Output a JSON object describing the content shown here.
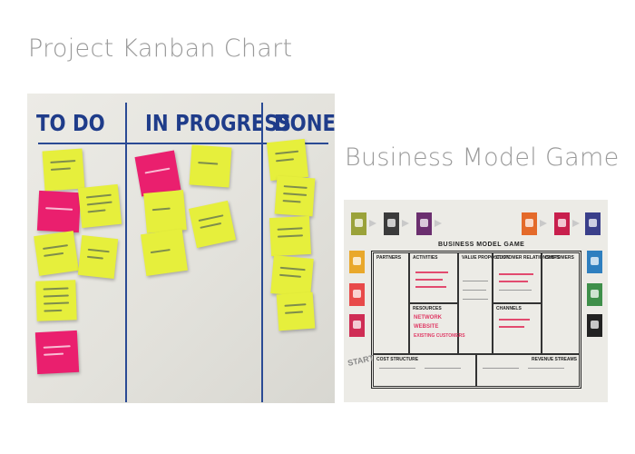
{
  "captions": {
    "kanban": "Project Kanban Chart",
    "business": "Business Model Game"
  },
  "kanban_board": {
    "columns": [
      "TO DO",
      "IN PROGRESS",
      "DONE!"
    ],
    "colors": {
      "yellow_note": "#e6ef3c",
      "pink_note": "#ea1f6e",
      "ink": "#1f3c8a"
    }
  },
  "business_model_board": {
    "title": "BUSINESS MODEL GAME",
    "sections": {
      "partners": "PARTNERS",
      "activities": "ACTIVITIES",
      "value": "VALUE PROPOSITION",
      "relationships": "CUSTOMER RELATIONSHIPS",
      "customers": "CUSTOMERS",
      "resources": "RESOURCES",
      "channels": "CHANNELS",
      "cost": "COST STRUCTURE",
      "revenue": "REVENUE STREAMS"
    },
    "resources_items": [
      "NETWORK",
      "WEBSITE",
      "EXISTING CUSTOMERS"
    ],
    "start_label": "START"
  }
}
